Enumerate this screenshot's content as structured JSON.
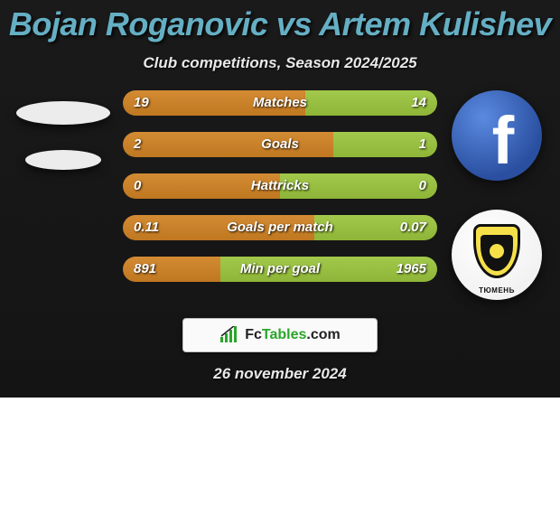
{
  "header": {
    "title": "Bojan Roganovic vs Artem Kulishev",
    "subtitle": "Club competitions, Season 2024/2025",
    "title_color": "#65afc4"
  },
  "stats": [
    {
      "label": "Matches",
      "left_value": "19",
      "right_value": "14",
      "left_pct": 58,
      "left_color": "#d38b34",
      "right_color": "#a2c94b"
    },
    {
      "label": "Goals",
      "left_value": "2",
      "right_value": "1",
      "left_pct": 67,
      "left_color": "#d38b34",
      "right_color": "#a2c94b"
    },
    {
      "label": "Hattricks",
      "left_value": "0",
      "right_value": "0",
      "left_pct": 50,
      "left_color": "#d38b34",
      "right_color": "#a2c94b"
    },
    {
      "label": "Goals per match",
      "left_value": "0.11",
      "right_value": "0.07",
      "left_pct": 61,
      "left_color": "#d38b34",
      "right_color": "#a2c94b"
    },
    {
      "label": "Min per goal",
      "left_value": "891",
      "right_value": "1965",
      "left_pct": 31,
      "left_color": "#d38b34",
      "right_color": "#a2c94b"
    }
  ],
  "brand": {
    "name_left": "Fc",
    "name_right": "Tables",
    "suffix": ".com"
  },
  "date": "26 november 2024",
  "badges": {
    "club_text": "TЮMEHЬ"
  }
}
